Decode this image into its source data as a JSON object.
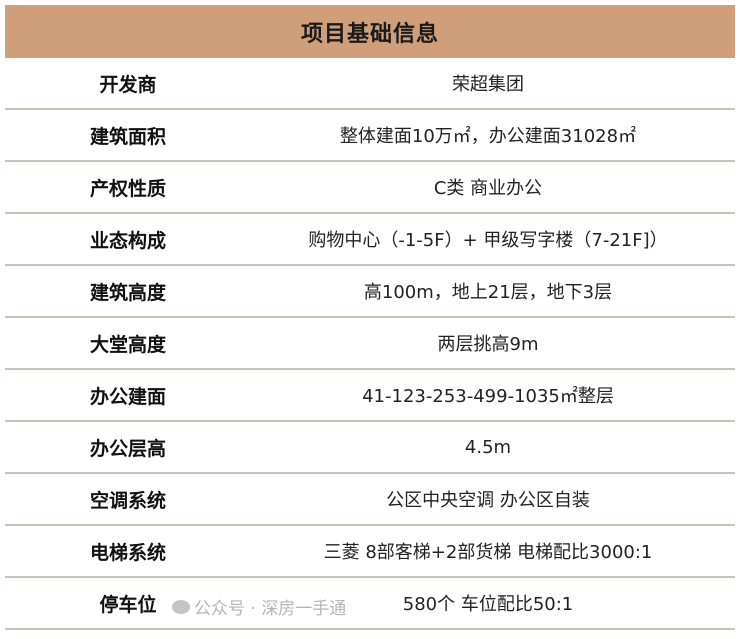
{
  "title": "项目基础信息",
  "rows": [
    {
      "label": "开发商",
      "value": "荣超集团"
    },
    {
      "label": "建筑面积",
      "value": "整体建面10万㎡，办公建面31028㎡"
    },
    {
      "label": "产权性质",
      "value": "C类 商业办公"
    },
    {
      "label": "业态构成",
      "value": "购物中心（-1-5F）+ 甲级写字楼（7-21F]）"
    },
    {
      "label": "建筑高度",
      "value": "高100m，地上21层，地下3层"
    },
    {
      "label": "大堂高度",
      "value": "两层挑高9m"
    },
    {
      "label": "办公建面",
      "value": "41-123-253-499-1035㎡整层"
    },
    {
      "label": "办公层高",
      "value": "4.5m"
    },
    {
      "label": "空调系统",
      "value": "公区中央空调  办公区自装"
    },
    {
      "label": "电梯系统",
      "value": "三菱  8部客梯+2部货梯  电梯配比3000:1"
    },
    {
      "label": "停车位",
      "value": "580个  车位配比50:1"
    }
  ],
  "watermark": "公众号 · 深房一手通",
  "colors": {
    "header_bg": "#cf9e7b",
    "divider": "#c9c3b5"
  }
}
